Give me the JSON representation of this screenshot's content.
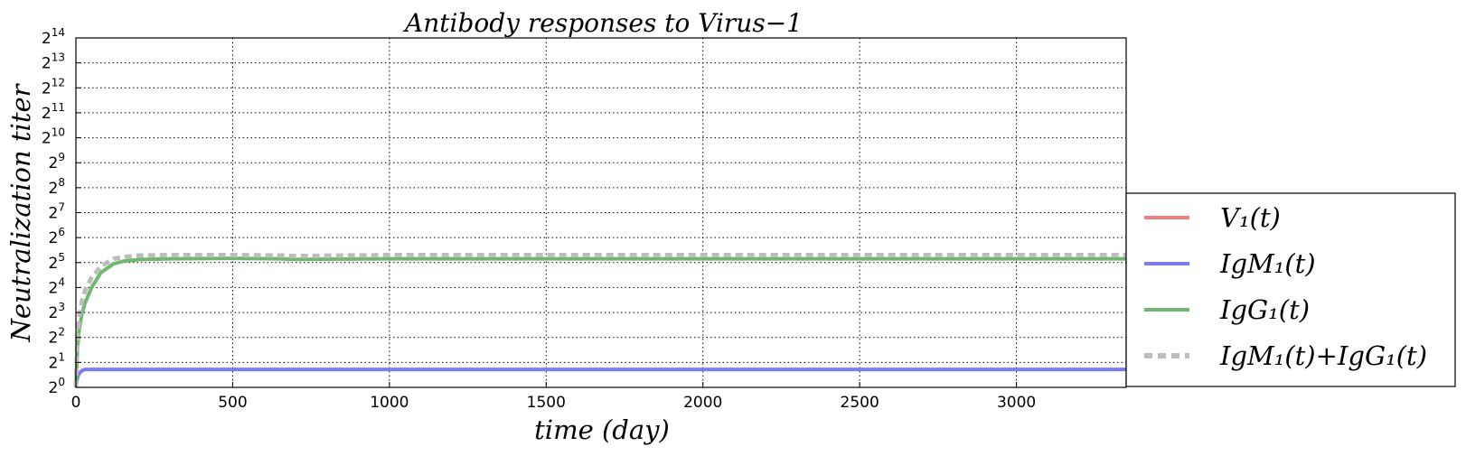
{
  "chart_data": {
    "type": "line",
    "title": "Antibody responses to Virus−1",
    "xlabel": "time (day)",
    "ylabel": "Neutralization  titer",
    "xlim": [
      0,
      3350
    ],
    "ylim_log2": [
      0,
      14
    ],
    "y_scale": "log2",
    "x_ticks": [
      0,
      500,
      1000,
      1500,
      2000,
      2500,
      3000
    ],
    "y_tick_exponents": [
      0,
      1,
      2,
      3,
      4,
      5,
      6,
      7,
      8,
      9,
      10,
      11,
      12,
      13,
      14
    ],
    "y_tick_base": "2",
    "grid": true,
    "legend_position": "outside-right",
    "series": [
      {
        "name": "V₁(t)",
        "color": "#f08080",
        "style": "solid",
        "x": [],
        "log2_values": []
      },
      {
        "name": "IgM₁(t)",
        "color": "#7b7bf5",
        "style": "solid",
        "x": [
          0,
          5,
          10,
          15,
          20,
          30,
          50,
          100,
          200,
          500,
          1000,
          1500,
          2000,
          2500,
          3000,
          3350
        ],
        "log2_values": [
          0,
          0.4,
          0.55,
          0.62,
          0.68,
          0.72,
          0.72,
          0.72,
          0.72,
          0.72,
          0.72,
          0.72,
          0.72,
          0.72,
          0.72,
          0.72
        ]
      },
      {
        "name": "IgG₁(t)",
        "color": "#70b870",
        "style": "solid",
        "x": [
          0,
          5,
          10,
          20,
          30,
          50,
          80,
          120,
          150,
          200,
          300,
          500,
          650,
          700,
          1000,
          1500,
          2000,
          2500,
          3000,
          3350
        ],
        "log2_values": [
          0,
          1.5,
          2.3,
          3.0,
          3.4,
          4.0,
          4.6,
          4.95,
          5.05,
          5.12,
          5.15,
          5.17,
          5.15,
          5.13,
          5.15,
          5.15,
          5.15,
          5.15,
          5.15,
          5.15
        ]
      },
      {
        "name": "IgM₁(t)+IgG₁(t)",
        "color": "#bdbdbd",
        "style": "dashed",
        "x": [
          0,
          5,
          10,
          20,
          30,
          50,
          80,
          120,
          150,
          200,
          300,
          500,
          650,
          700,
          1000,
          1500,
          2000,
          2500,
          3000,
          3350
        ],
        "log2_values": [
          0,
          2.0,
          2.8,
          3.5,
          3.9,
          4.4,
          4.85,
          5.15,
          5.22,
          5.28,
          5.3,
          5.3,
          5.28,
          5.26,
          5.3,
          5.3,
          5.3,
          5.3,
          5.3,
          5.3
        ]
      }
    ]
  }
}
